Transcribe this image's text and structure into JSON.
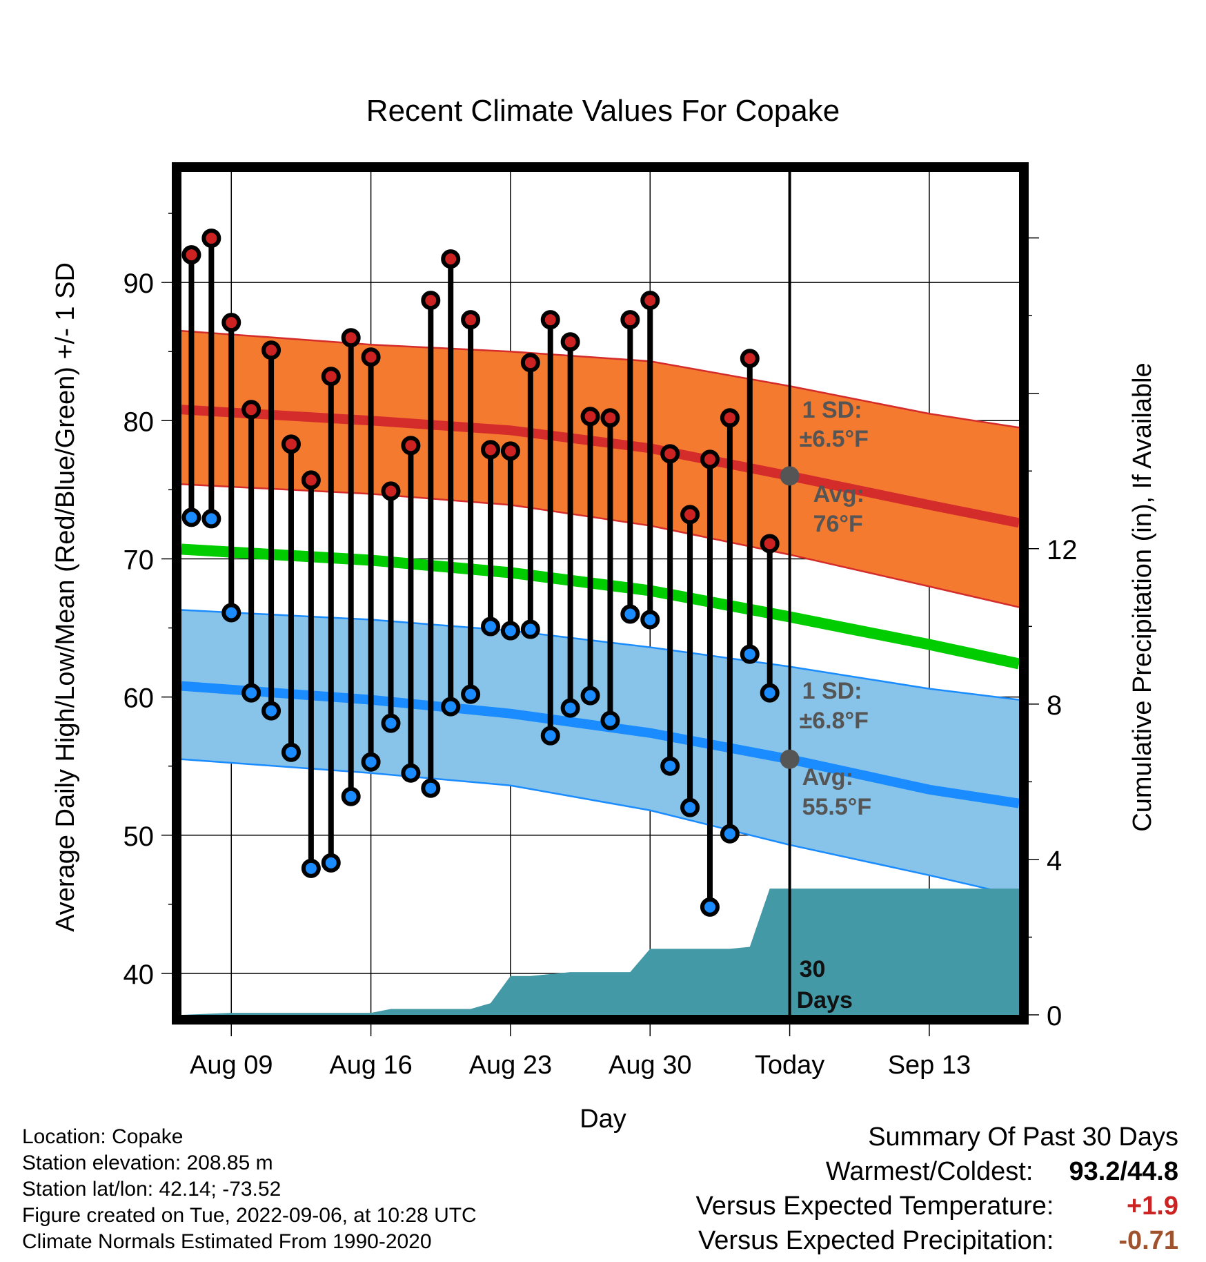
{
  "chart_data": {
    "type": "line",
    "title": "Recent Climate Values For Copake",
    "xlabel": "Day",
    "ylabel": "Average Daily High/Low/Mean (Red/Blue/Green) +/- 1 SD",
    "y2label": "Cumulative Precipitation (in), If Available",
    "xlim": [
      -2.5,
      39.5
    ],
    "ylim": [
      37,
      98
    ],
    "y2lim": [
      0,
      21.7
    ],
    "x_ticks": [
      {
        "x": 0,
        "label": "Aug 09"
      },
      {
        "x": 7,
        "label": "Aug 16"
      },
      {
        "x": 14,
        "label": "Aug 23"
      },
      {
        "x": 21,
        "label": "Aug 30"
      },
      {
        "x": 28,
        "label": "Today"
      },
      {
        "x": 35,
        "label": "Sep 13"
      }
    ],
    "y_ticks": [
      40,
      50,
      60,
      70,
      80,
      90
    ],
    "y2_ticks": [
      0,
      4,
      8,
      12
    ],
    "today_x": 28,
    "observed_x": [
      -2,
      -1,
      0,
      1,
      2,
      3,
      4,
      5,
      6,
      7,
      8,
      9,
      10,
      11,
      12,
      13,
      14,
      15,
      16,
      17,
      18,
      19,
      20,
      21,
      22,
      23,
      24,
      25,
      26,
      27
    ],
    "observed_high": [
      92.0,
      93.2,
      87.1,
      80.8,
      85.1,
      78.3,
      75.7,
      83.2,
      86.0,
      84.6,
      74.9,
      78.2,
      88.7,
      91.7,
      87.3,
      77.9,
      77.8,
      84.2,
      87.3,
      85.7,
      80.3,
      80.2,
      87.3,
      88.7,
      77.6,
      73.2,
      77.2,
      80.2,
      84.5,
      71.1
    ],
    "observed_low": [
      73.0,
      72.9,
      66.1,
      60.3,
      59.0,
      56.0,
      47.6,
      48.0,
      52.8,
      55.3,
      58.1,
      54.5,
      53.4,
      59.3,
      60.2,
      65.1,
      64.8,
      64.9,
      57.2,
      59.2,
      60.1,
      58.3,
      66.0,
      65.6,
      55.0,
      52.0,
      44.8,
      50.1,
      63.1,
      60.3
    ],
    "normal_x": [
      -2.5,
      7,
      14,
      21,
      28,
      35,
      39.5
    ],
    "normal_high": [
      80.8,
      80.0,
      79.3,
      78.0,
      76.0,
      73.9,
      72.6
    ],
    "high_sd_upper": [
      86.5,
      85.5,
      85.0,
      84.3,
      82.5,
      80.5,
      79.5
    ],
    "high_sd_lower": [
      75.4,
      74.7,
      73.9,
      72.4,
      70.3,
      68.0,
      66.5
    ],
    "normal_mean": [
      70.7,
      69.9,
      69.0,
      67.7,
      65.8,
      63.8,
      62.4
    ],
    "normal_low": [
      60.8,
      59.8,
      58.8,
      57.4,
      55.5,
      53.3,
      52.3
    ],
    "low_sd_upper": [
      66.3,
      65.6,
      64.8,
      63.6,
      62.2,
      60.6,
      59.8
    ],
    "low_sd_lower": [
      55.5,
      54.5,
      53.6,
      51.8,
      49.3,
      47.1,
      45.6
    ],
    "precip_x": [
      -2.5,
      0,
      7,
      8,
      12,
      13,
      14,
      15,
      17,
      18,
      19,
      20,
      21,
      22,
      23,
      24,
      25,
      26,
      27,
      28,
      39.5
    ],
    "precip_cum": [
      0.0,
      0.05,
      0.05,
      0.15,
      0.15,
      0.3,
      1.0,
      1.0,
      1.1,
      1.1,
      1.1,
      1.1,
      1.7,
      1.7,
      1.7,
      1.7,
      1.7,
      1.75,
      3.25,
      3.25,
      3.25
    ],
    "annotations": {
      "high_sd": {
        "line1": "1 SD:",
        "line2": "±6.5°F"
      },
      "high_avg": {
        "line1": "Avg:",
        "line2": "76°F"
      },
      "low_sd": {
        "line1": "1 SD:",
        "line2": "±6.8°F"
      },
      "low_avg": {
        "line1": "Avg:",
        "line2": "55.5°F"
      },
      "days": {
        "line1": "30",
        "line2": "Days"
      }
    },
    "colors": {
      "high_band": "#f47a30",
      "high_line": "#d42b2b",
      "mean_line": "#00cc00",
      "low_band": "#88c4ea",
      "low_line": "#1a8cff",
      "precip": "#4499a6",
      "high_dot": "#cc2222",
      "low_dot": "#1a8cff",
      "annotation": "#555555"
    }
  },
  "info": {
    "location": "Location: Copake",
    "elevation": "Station elevation: 208.85 m",
    "latlon": "Station lat/lon: 42.14; -73.52",
    "created": "Figure created on Tue, 2022-09-06, at 10:28 UTC",
    "normals": "Climate Normals Estimated From 1990-2020"
  },
  "summary": {
    "title": "Summary Of Past 30 Days",
    "warm_cold_label": "Warmest/Coldest:",
    "warm_cold_value": "93.2/44.8",
    "temp_label": "Versus Expected Temperature:",
    "temp_value": "+1.9",
    "temp_color": "#cc2222",
    "precip_label": "Versus Expected Precipitation:",
    "precip_value": "-0.71",
    "precip_color": "#a0522d"
  }
}
